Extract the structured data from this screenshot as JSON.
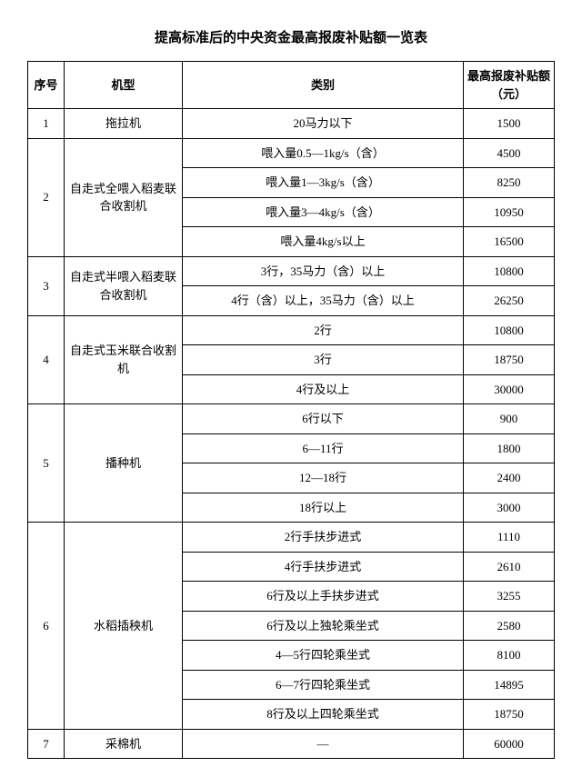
{
  "title": "提高标准后的中央资金最高报废补贴额一览表",
  "headers": {
    "seq": "序号",
    "model": "机型",
    "category": "类别",
    "amount": "最高报废补贴额（元）"
  },
  "groups": [
    {
      "seq": "1",
      "model": "拖拉机",
      "rows": [
        {
          "cat": "20马力以下",
          "amt": "1500"
        }
      ]
    },
    {
      "seq": "2",
      "model": "自走式全喂入稻麦联合收割机",
      "rows": [
        {
          "cat": "喂入量0.5—1kg/s（含）",
          "amt": "4500"
        },
        {
          "cat": "喂入量1—3kg/s（含）",
          "amt": "8250"
        },
        {
          "cat": "喂入量3—4kg/s（含）",
          "amt": "10950"
        },
        {
          "cat": "喂入量4kg/s以上",
          "amt": "16500"
        }
      ]
    },
    {
      "seq": "3",
      "model": "自走式半喂入稻麦联合收割机",
      "rows": [
        {
          "cat": "3行，35马力（含）以上",
          "amt": "10800"
        },
        {
          "cat": "4行（含）以上，35马力（含）以上",
          "amt": "26250"
        }
      ]
    },
    {
      "seq": "4",
      "model": "自走式玉米联合收割机",
      "rows": [
        {
          "cat": "2行",
          "amt": "10800"
        },
        {
          "cat": "3行",
          "amt": "18750"
        },
        {
          "cat": "4行及以上",
          "amt": "30000"
        }
      ]
    },
    {
      "seq": "5",
      "model": "播种机",
      "rows": [
        {
          "cat": "6行以下",
          "amt": "900"
        },
        {
          "cat": "6—11行",
          "amt": "1800"
        },
        {
          "cat": "12—18行",
          "amt": "2400"
        },
        {
          "cat": "18行以上",
          "amt": "3000"
        }
      ]
    },
    {
      "seq": "6",
      "model": "水稻插秧机",
      "rows": [
        {
          "cat": "2行手扶步进式",
          "amt": "1110"
        },
        {
          "cat": "4行手扶步进式",
          "amt": "2610"
        },
        {
          "cat": "6行及以上手扶步进式",
          "amt": "3255"
        },
        {
          "cat": "6行及以上独轮乘坐式",
          "amt": "2580"
        },
        {
          "cat": "4—5行四轮乘坐式",
          "amt": "8100"
        },
        {
          "cat": "6—7行四轮乘坐式",
          "amt": "14895"
        },
        {
          "cat": "8行及以上四轮乘坐式",
          "amt": "18750"
        }
      ]
    },
    {
      "seq": "7",
      "model": "采棉机",
      "rows": [
        {
          "cat": "—",
          "amt": "60000"
        }
      ]
    }
  ]
}
